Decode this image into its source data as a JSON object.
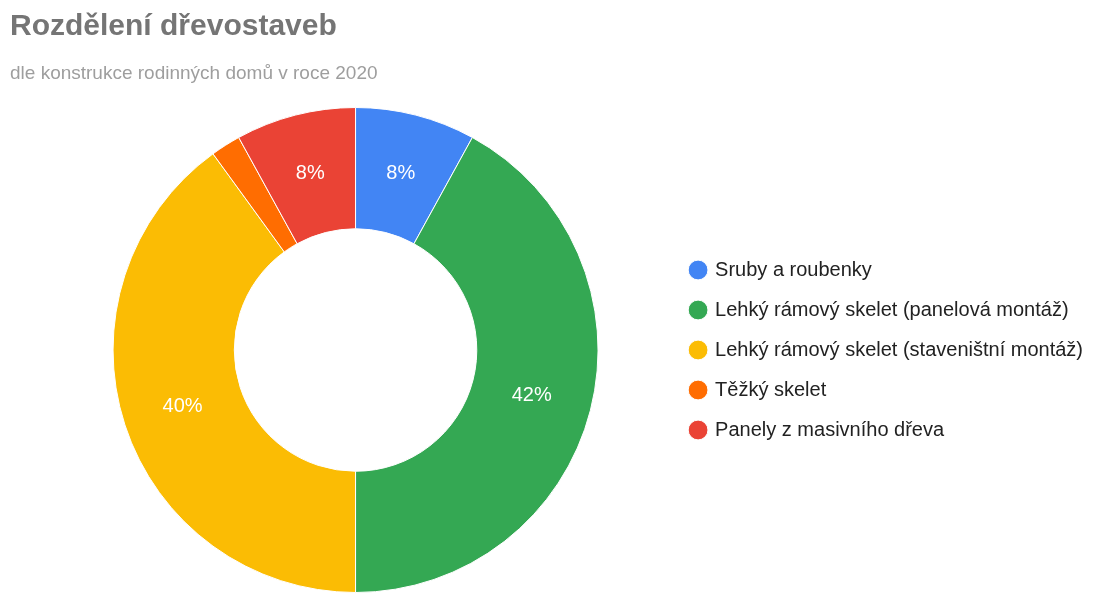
{
  "chart_data": {
    "type": "donut",
    "title": "Rozdělení dřevostaveb",
    "subtitle": "dle konstrukce rodinných domů v roce 2020",
    "categories": [
      "Sruby a roubenky",
      "Lehký rámový skelet (panelová montáž)",
      "Lehký rámový skelet (staveništní montáž)",
      "Těžký skelet",
      "Panely z masivního dřeva"
    ],
    "values": [
      8,
      42,
      40,
      2,
      8
    ],
    "colors": [
      "#4285f4",
      "#34a853",
      "#fbbc04",
      "#ff6d01",
      "#ea4335"
    ],
    "value_labels": [
      "8%",
      "42%",
      "40%",
      null,
      "8%"
    ],
    "legend": "right"
  }
}
